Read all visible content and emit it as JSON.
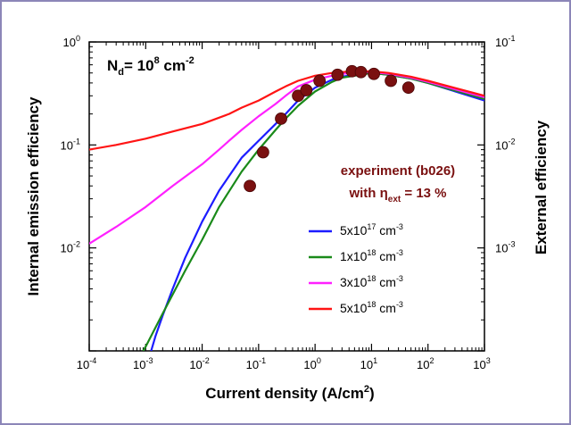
{
  "chart_data": {
    "type": "line",
    "x_scale": "log",
    "y_scale": "log",
    "xlim": [
      0.0001,
      1000
    ],
    "ylim": [
      0.001,
      1
    ],
    "y2lim": [
      0.0001,
      0.1
    ],
    "xlabel": {
      "main": "Current density (A/cm",
      "sup": "2",
      "end": ")"
    },
    "ylabel": "Internal emission efficiency",
    "y2label": "External efficiency",
    "x_ticks": [
      {
        "value": 0.0001,
        "base": "10",
        "exp": "-4"
      },
      {
        "value": 0.001,
        "base": "10",
        "exp": "-3"
      },
      {
        "value": 0.01,
        "base": "10",
        "exp": "-2"
      },
      {
        "value": 0.1,
        "base": "10",
        "exp": "-1"
      },
      {
        "value": 1,
        "base": "10",
        "exp": "0"
      },
      {
        "value": 10,
        "base": "10",
        "exp": "1"
      },
      {
        "value": 100,
        "base": "10",
        "exp": "2"
      },
      {
        "value": 1000,
        "base": "10",
        "exp": "3"
      }
    ],
    "y_ticks": [
      {
        "value": 1,
        "base": "10",
        "exp": "0"
      },
      {
        "value": 0.1,
        "base": "10",
        "exp": "-1"
      },
      {
        "value": 0.01,
        "base": "10",
        "exp": "-2"
      }
    ],
    "y2_ticks": [
      {
        "value": 0.1,
        "base": "10",
        "exp": "-1"
      },
      {
        "value": 0.01,
        "base": "10",
        "exp": "-2"
      },
      {
        "value": 0.001,
        "base": "10",
        "exp": "-3"
      }
    ],
    "annotation": {
      "prefix": "N",
      "sub": "d",
      "mid": "= 10",
      "sup": "8",
      "unit": " cm",
      "unit_sup": "-2"
    },
    "experiment": {
      "line1": "experiment (b026)",
      "line2_prefix": "with  η",
      "line2_sub": "ext",
      "line2_suffix": " = 13 %",
      "color": "#7a1010",
      "points": [
        {
          "x": 0.07,
          "y": 0.04
        },
        {
          "x": 0.12,
          "y": 0.085
        },
        {
          "x": 0.25,
          "y": 0.18
        },
        {
          "x": 0.5,
          "y": 0.3
        },
        {
          "x": 0.7,
          "y": 0.34
        },
        {
          "x": 1.2,
          "y": 0.42
        },
        {
          "x": 2.5,
          "y": 0.48
        },
        {
          "x": 4.5,
          "y": 0.52
        },
        {
          "x": 6.5,
          "y": 0.51
        },
        {
          "x": 11,
          "y": 0.49
        },
        {
          "x": 22,
          "y": 0.42
        },
        {
          "x": 45,
          "y": 0.36
        }
      ]
    },
    "series": [
      {
        "name": {
          "base": "5x10",
          "exp": "17",
          "unit": " cm",
          "unit_exp": "-3"
        },
        "color": "#1c1cff",
        "x": [
          0.00125,
          0.0015,
          0.002,
          0.003,
          0.005,
          0.01,
          0.02,
          0.05,
          0.1,
          0.2,
          0.3,
          0.5,
          1,
          2,
          3,
          5,
          10,
          20,
          50,
          100,
          1000
        ],
        "y": [
          0.001,
          0.0014,
          0.0022,
          0.004,
          0.008,
          0.018,
          0.036,
          0.075,
          0.11,
          0.16,
          0.2,
          0.27,
          0.36,
          0.43,
          0.46,
          0.48,
          0.5,
          0.48,
          0.44,
          0.4,
          0.27
        ]
      },
      {
        "name": {
          "base": "1x10",
          "exp": "18",
          "unit": " cm",
          "unit_exp": "-3"
        },
        "color": "#1a8a1a",
        "x": [
          0.0009,
          0.001,
          0.002,
          0.005,
          0.01,
          0.02,
          0.05,
          0.1,
          0.2,
          0.3,
          0.5,
          1,
          2,
          3,
          5,
          10,
          20,
          50,
          100,
          1000
        ],
        "y": [
          0.001,
          0.0011,
          0.0023,
          0.006,
          0.012,
          0.025,
          0.055,
          0.09,
          0.14,
          0.18,
          0.24,
          0.33,
          0.41,
          0.45,
          0.47,
          0.5,
          0.48,
          0.44,
          0.4,
          0.28
        ]
      },
      {
        "name": {
          "base": "3x10",
          "exp": "18",
          "unit": " cm",
          "unit_exp": "-3"
        },
        "color": "#ff20ff",
        "x": [
          0.0001,
          0.0003,
          0.001,
          0.003,
          0.01,
          0.02,
          0.03,
          0.05,
          0.1,
          0.2,
          0.3,
          0.5,
          1,
          2,
          3,
          5,
          10,
          20,
          50,
          100,
          1000
        ],
        "y": [
          0.011,
          0.016,
          0.025,
          0.04,
          0.065,
          0.09,
          0.11,
          0.14,
          0.19,
          0.25,
          0.3,
          0.37,
          0.43,
          0.47,
          0.49,
          0.5,
          0.51,
          0.49,
          0.45,
          0.41,
          0.29
        ]
      },
      {
        "name": {
          "base": "5x10",
          "exp": "18",
          "unit": " cm",
          "unit_exp": "-3"
        },
        "color": "#ff1414",
        "x": [
          0.0001,
          0.0003,
          0.001,
          0.003,
          0.01,
          0.03,
          0.05,
          0.1,
          0.2,
          0.3,
          0.5,
          1,
          2,
          3,
          5,
          10,
          20,
          50,
          100,
          1000
        ],
        "y": [
          0.09,
          0.1,
          0.115,
          0.135,
          0.16,
          0.2,
          0.23,
          0.27,
          0.33,
          0.37,
          0.42,
          0.47,
          0.5,
          0.51,
          0.52,
          0.52,
          0.5,
          0.46,
          0.42,
          0.3
        ]
      }
    ]
  }
}
